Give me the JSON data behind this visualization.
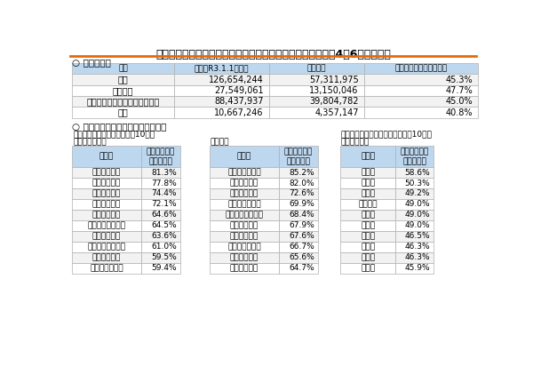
{
  "title": "マイナンバーカードの市区町村別交付枚数等について（令和4年6月末時点）",
  "section1_label": "○ 団体区分別",
  "table1_headers": [
    "区分",
    "人口（R3.1.1時点）",
    "交付枚数",
    "人口に対する交付枚数率"
  ],
  "table1_rows": [
    [
      "全国",
      "126,654,244",
      "57,311,975",
      "45.3%"
    ],
    [
      "指定都市",
      "27,549,061",
      "13,150,046",
      "47.7%"
    ],
    [
      "特別区・市（指定都市を除く）",
      "88,437,937",
      "39,804,782",
      "45.0%"
    ],
    [
      "町村",
      "10,667,246",
      "4,357,147",
      "40.8%"
    ]
  ],
  "section2_label": "○ マイナンバーカード交付先進地域",
  "sub1_label": "（１）区分別交付枚数率上位10団体",
  "sub2_label": "（２）都道府県別交付枚数率上位10団体",
  "cat1_label": "【特別区・市】",
  "cat2_label": "【町村】",
  "cat3_label": "【都道府県】",
  "col_header1": "団体名",
  "col_header2": "人口に対する\n交付枚数率",
  "table2_rows": [
    [
      "宮崎県都城市",
      "81.3%"
    ],
    [
      "兵庫県養父市",
      "77.8%"
    ],
    [
      "石川県加賀市",
      "74.4%"
    ],
    [
      "高知県宿毛市",
      "72.1%"
    ],
    [
      "石川県珠洲市",
      "64.6%"
    ],
    [
      "和歌山県紀の川市",
      "64.5%"
    ],
    [
      "愛媛県大洲市",
      "63.6%"
    ],
    [
      "鹿児島県西之表市",
      "61.0%"
    ],
    [
      "宮崎県宮崎市",
      "59.5%"
    ],
    [
      "高知県四万十市",
      "59.4%"
    ]
  ],
  "table3_rows": [
    [
      "新潟県粟島浦村",
      "85.2%"
    ],
    [
      "大分県姫島村",
      "82.0%"
    ],
    [
      "福井県池田町",
      "72.6%"
    ],
    [
      "静岡県西伊豆町",
      "69.9%"
    ],
    [
      "鹿児島県中種子町",
      "68.4%"
    ],
    [
      "長野県南牧村",
      "67.9%"
    ],
    [
      "兵庫県香美町",
      "67.6%"
    ],
    [
      "長崎県小値賀町",
      "66.7%"
    ],
    [
      "熊本県苓北町",
      "65.6%"
    ],
    [
      "福島県磐梯町",
      "64.7%"
    ]
  ],
  "table4_rows": [
    [
      "宮崎県",
      "58.6%"
    ],
    [
      "兵庫県",
      "50.3%"
    ],
    [
      "奈良県",
      "49.2%"
    ],
    [
      "神奈川県",
      "49.0%"
    ],
    [
      "東京都",
      "49.0%"
    ],
    [
      "滋賀県",
      "49.0%"
    ],
    [
      "山口県",
      "46.5%"
    ],
    [
      "千葉県",
      "46.3%"
    ],
    [
      "大阪府",
      "46.3%"
    ],
    [
      "広島県",
      "45.9%"
    ]
  ],
  "table_header_bg": "#bdd7ee",
  "row_bg_alt": "#f2f2f2",
  "row_bg_main": "#ffffff",
  "border_color": "#b0b0b0",
  "title_color": "#000000",
  "orange_line_color": "#e26b0a",
  "section_color": "#000000"
}
